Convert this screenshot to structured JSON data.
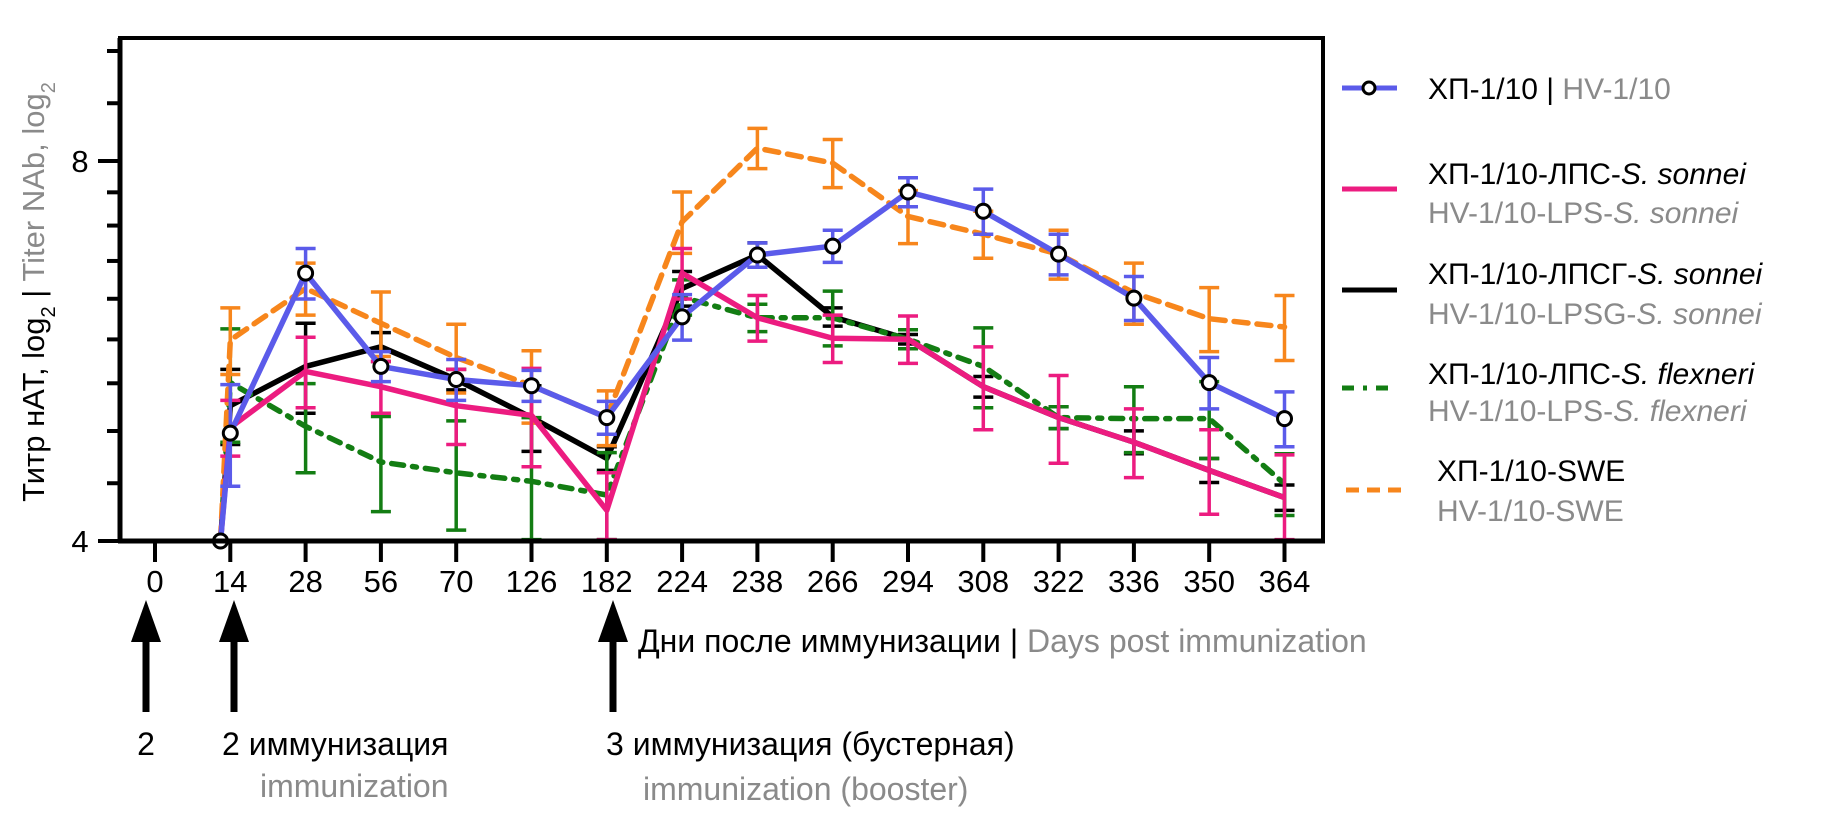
{
  "chart_data": {
    "type": "line",
    "title": "",
    "ylabel": {
      "ru": "Титр нАТ, log",
      "sub1": "2",
      "sep": " | ",
      "en": "Titer NAb, log",
      "sub2": "2"
    },
    "xlabel": {
      "ru": "Дни после иммунизации",
      "sep": " | ",
      "en": "Days post immunization"
    },
    "y_scale": "log2",
    "ylim": [
      4,
      10
    ],
    "y_tick_labels": [
      "4",
      "8"
    ],
    "y_ticks": [
      4,
      8
    ],
    "categories": [
      "0",
      "14",
      "28",
      "56",
      "70",
      "126",
      "182",
      "224",
      "238",
      "266",
      "294",
      "308",
      "322",
      "336",
      "350",
      "364"
    ],
    "baseline_value": 4,
    "grid": false,
    "legend_position": "right",
    "series": [
      {
        "key": "black",
        "name_ru": "ХП-1/10-ЛПСГ-",
        "name_ru_species": "S. sonnei",
        "name_en": "HV-1/10-LPSG-",
        "name_en_species": "S. sonnei",
        "color": "#000000",
        "style": "solid",
        "marker": "none",
        "values": [
          null,
          5.12,
          5.5,
          5.7,
          5.37,
          5.01,
          4.65,
          6.34,
          6.74,
          6.02,
          5.78,
          5.3,
          5.01,
          4.79,
          4.55,
          4.33
        ],
        "err": [
          null,
          0.35,
          0.45,
          0.15,
          0.1,
          0.3,
          0.1,
          0.2,
          0.15,
          0.1,
          0.05,
          0.1,
          0.1,
          0.1,
          0.1,
          0.1
        ]
      },
      {
        "key": "green",
        "name_ru": "ХП-1/10-ЛПС-",
        "name_ru_species": "S. flexneri",
        "name_en": "HV-1/10-LPS-",
        "name_en_species": "S. flexneri",
        "color": "#137d13",
        "style": "dashdot",
        "marker": "none",
        "values": [
          null,
          5.34,
          4.93,
          4.62,
          4.53,
          4.46,
          4.35,
          6.24,
          6.01,
          6.01,
          5.78,
          5.5,
          5.01,
          5.0,
          5.0,
          4.44
        ],
        "err": [
          null,
          0.55,
          0.4,
          0.4,
          0.45,
          0.55,
          0.35,
          0.2,
          0.15,
          0.3,
          0.1,
          0.4,
          0.1,
          0.3,
          0.35,
          0.25
        ]
      },
      {
        "key": "orange",
        "name_ru": "ХП-1/10-SWE",
        "name_ru_species": "",
        "name_en": "HV-1/10-SWE",
        "name_en_species": "",
        "color": "#f7861c",
        "style": "dash",
        "marker": "none",
        "values": [
          null,
          5.77,
          6.34,
          5.95,
          5.59,
          5.31,
          5.01,
          7.16,
          8.19,
          7.97,
          7.23,
          7.0,
          6.75,
          6.29,
          6.0,
          5.91
        ],
        "err": [
          null,
          0.35,
          0.3,
          0.35,
          0.35,
          0.35,
          0.25,
          0.4,
          0.3,
          0.35,
          0.35,
          0.3,
          0.3,
          0.35,
          0.35,
          0.35
        ]
      },
      {
        "key": "pink",
        "name_ru": "ХП-1/10-ЛПС-",
        "name_ru_species": "S. sonnei",
        "name_en": "HV-1/10-LPS-",
        "name_en_species": "S. sonnei",
        "color": "#ec1c80",
        "style": "solid",
        "marker": "none",
        "values": [
          null,
          4.92,
          5.45,
          5.3,
          5.12,
          5.03,
          4.23,
          6.52,
          6.01,
          5.79,
          5.78,
          5.3,
          5.01,
          4.79,
          4.55,
          4.33
        ],
        "err": [
          null,
          0.25,
          0.35,
          0.25,
          0.35,
          0.45,
          0.3,
          0.3,
          0.25,
          0.25,
          0.25,
          0.4,
          0.4,
          0.3,
          0.35,
          0.35
        ]
      },
      {
        "key": "blue",
        "name_ru": "ХП-1/10",
        "name_ru_species": "",
        "name_en": "HV-1/10",
        "name_en_species": "",
        "color": "#5b5bea",
        "style": "solid",
        "marker": "open-circle",
        "values": [
          null,
          4.87,
          6.52,
          5.5,
          5.37,
          5.31,
          5.01,
          6.02,
          6.74,
          6.85,
          7.56,
          7.3,
          6.75,
          6.23,
          5.34,
          5.0
        ],
        "err": [
          null,
          0.45,
          0.3,
          0.15,
          0.2,
          0.15,
          0.15,
          0.25,
          0.15,
          0.2,
          0.2,
          0.3,
          0.25,
          0.25,
          0.25,
          0.25
        ]
      }
    ],
    "annotations": [
      {
        "at": "0",
        "ru": "2",
        "en": ""
      },
      {
        "at": "14",
        "ru": "2 иммунизация",
        "en": "immunization"
      },
      {
        "at": "182",
        "ru": "3 иммунизация (бустерная)",
        "en": "immunization (booster)"
      }
    ]
  },
  "legend": {
    "blue": {
      "ru": "ХП-1/10",
      "sep": " | ",
      "en": "HV-1/10"
    },
    "pink": {
      "ru": "ХП-1/10-ЛПС-",
      "ru_sp": "S. sonnei",
      "en": "HV-1/10-LPS-",
      "en_sp": "S. sonnei"
    },
    "black": {
      "ru": "ХП-1/10-ЛПСГ-",
      "ru_sp": "S. sonnei",
      "en": "HV-1/10-LPSG-",
      "en_sp": "S. sonnei"
    },
    "green": {
      "ru": "ХП-1/10-ЛПС-",
      "ru_sp": "S. flexneri",
      "en": "HV-1/10-LPS-",
      "en_sp": "S. flexneri"
    },
    "orange": {
      "ru": "ХП-1/10-SWE",
      "en": "HV-1/10-SWE"
    }
  }
}
